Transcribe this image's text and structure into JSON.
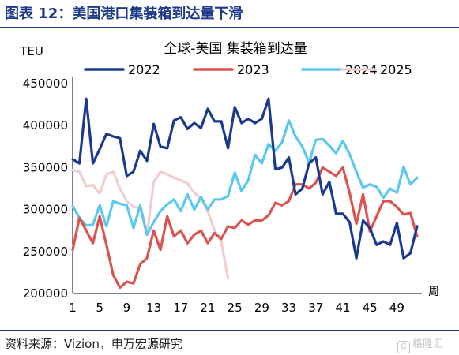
{
  "figure_title": "图表 12：美国港口集装箱到达量下滑",
  "source": "资料来源：Vizion，申万宏源研究",
  "watermark": "格隆汇",
  "colors": {
    "accent": "#1f3a8a"
  },
  "chart_data": {
    "type": "line",
    "title": "全球-美国 集装箱到达量",
    "ylabel": "TEU",
    "xlabel": "周",
    "ylim": [
      200000,
      450000
    ],
    "yticks": [
      200000,
      250000,
      300000,
      350000,
      400000,
      450000
    ],
    "xticks": [
      1,
      5,
      9,
      13,
      17,
      21,
      25,
      29,
      33,
      37,
      41,
      45,
      49
    ],
    "xlim": [
      1,
      52
    ],
    "series": [
      {
        "name": "2022",
        "color": "#1a3a8f",
        "x": [
          1,
          2,
          3,
          4,
          5,
          6,
          7,
          8,
          9,
          10,
          11,
          12,
          13,
          14,
          15,
          16,
          17,
          18,
          19,
          20,
          21,
          22,
          23,
          24,
          25,
          26,
          27,
          28,
          29,
          30,
          31,
          32,
          33,
          34,
          35,
          36,
          37,
          38,
          39,
          40,
          41,
          42,
          43,
          44,
          45,
          46,
          47,
          48,
          49,
          50,
          51,
          52
        ],
        "values": [
          360000,
          355000,
          432000,
          355000,
          372000,
          390000,
          387000,
          385000,
          340000,
          345000,
          370000,
          358000,
          402000,
          375000,
          373000,
          406000,
          410000,
          396000,
          403000,
          397000,
          420000,
          405000,
          405000,
          373000,
          422000,
          403000,
          408000,
          403000,
          408000,
          432000,
          348000,
          350000,
          362000,
          318000,
          325000,
          355000,
          362000,
          318000,
          333000,
          295000,
          295000,
          285000,
          242000,
          287000,
          278000,
          258000,
          262000,
          258000,
          284000,
          242000,
          248000,
          280000
        ]
      },
      {
        "name": "2023",
        "color": "#d9534f",
        "x": [
          1,
          2,
          3,
          4,
          5,
          6,
          7,
          8,
          9,
          10,
          11,
          12,
          13,
          14,
          15,
          16,
          17,
          18,
          19,
          20,
          21,
          22,
          23,
          24,
          25,
          26,
          27,
          28,
          29,
          30,
          31,
          32,
          33,
          34,
          35,
          36,
          37,
          38,
          39,
          40,
          41,
          42,
          43,
          44,
          45,
          46,
          47,
          48,
          49,
          50,
          51,
          52
        ],
        "values": [
          252000,
          290000,
          275000,
          260000,
          292000,
          258000,
          222000,
          207000,
          214000,
          212000,
          235000,
          242000,
          275000,
          252000,
          292000,
          268000,
          275000,
          260000,
          270000,
          275000,
          260000,
          272000,
          265000,
          280000,
          278000,
          287000,
          282000,
          287000,
          287000,
          293000,
          308000,
          305000,
          310000,
          330000,
          330000,
          325000,
          332000,
          350000,
          345000,
          340000,
          350000,
          320000,
          283000,
          318000,
          274000,
          292000,
          310000,
          310000,
          303000,
          294000,
          296000,
          268000
        ]
      },
      {
        "name": "2024",
        "color": "#5bc8f0",
        "x": [
          1,
          2,
          3,
          4,
          5,
          6,
          7,
          8,
          9,
          10,
          11,
          12,
          13,
          14,
          15,
          16,
          17,
          18,
          19,
          20,
          21,
          22,
          23,
          24,
          25,
          26,
          27,
          28,
          29,
          30,
          31,
          32,
          33,
          34,
          35,
          36,
          37,
          38,
          39,
          40,
          41,
          42,
          43,
          44,
          45,
          46,
          47,
          48,
          49,
          50,
          51,
          52
        ],
        "values": [
          304000,
          290000,
          281000,
          282000,
          305000,
          280000,
          310000,
          307000,
          305000,
          278000,
          305000,
          270000,
          285000,
          298000,
          306000,
          312000,
          298000,
          318000,
          300000,
          315000,
          300000,
          312000,
          312000,
          316000,
          344000,
          322000,
          335000,
          365000,
          355000,
          378000,
          370000,
          380000,
          406000,
          387000,
          375000,
          356000,
          383000,
          384000,
          376000,
          367000,
          382000,
          366000,
          345000,
          326000,
          330000,
          327000,
          314000,
          325000,
          320000,
          351000,
          330000,
          338000
        ]
      },
      {
        "name": "2025",
        "color": "#f4cccc",
        "x": [
          1,
          2,
          3,
          4,
          5,
          6,
          7,
          8,
          9,
          10,
          11,
          12,
          13,
          14,
          15,
          16,
          17,
          18,
          19,
          20,
          21,
          22,
          23,
          24
        ],
        "values": [
          347000,
          345000,
          328000,
          329000,
          319000,
          342000,
          345000,
          325000,
          310000,
          303000,
          302000,
          270000,
          333000,
          345000,
          342000,
          338000,
          335000,
          331000,
          320000,
          313000,
          298000,
          275000,
          262000,
          218000
        ]
      }
    ]
  }
}
